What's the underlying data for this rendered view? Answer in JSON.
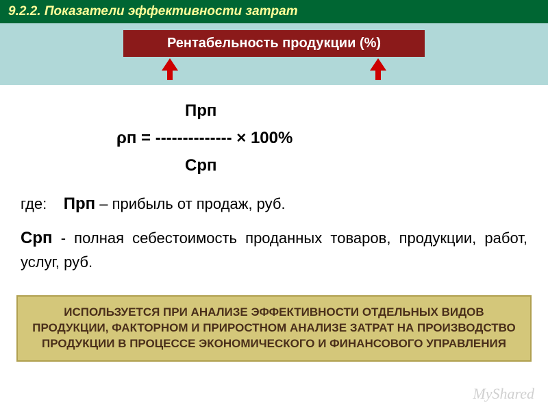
{
  "header": {
    "title": "9.2.2. Показатели эффективности затрат",
    "bg_color": "#006633",
    "text_color": "#ffff99"
  },
  "subHeader": {
    "title": "Рентабельность продукции (%)",
    "bg_color": "#8b1a1a",
    "text_color": "#ffffff",
    "area_bg": "#b0d8d8",
    "arrow_color": "#cc0000"
  },
  "formula": {
    "numerator": "Прп",
    "expression": "ρп = -------------- × 100%",
    "denominator": "Срп"
  },
  "definitions": {
    "where_label": "где:",
    "prp_abbr": "Прп",
    "prp_desc": " – прибыль от продаж, руб.",
    "srp_abbr": "Срп",
    "srp_desc": " - полная себестоимость проданных товаров, продукции, работ, услуг, руб."
  },
  "bottomBox": {
    "text": "ИСПОЛЬЗУЕТСЯ ПРИ АНАЛИЗЕ ЭФФЕКТИВНОСТИ ОТДЕЛЬНЫХ ВИДОВ ПРОДУКЦИИ, ФАКТОРНОМ И ПРИРОСТНОМ АНАЛИЗЕ ЗАТРАТ НА ПРОИЗВОДСТВО ПРОДУКЦИИ В ПРОЦЕССЕ ЭКОНОМИЧЕСКОГО И ФИНАНСОВОГО УПРАВЛЕНИЯ",
    "bg_color": "#d4c77a",
    "border_color": "#b0a050",
    "text_color": "#4a2f1a"
  },
  "watermark": "MyShared"
}
